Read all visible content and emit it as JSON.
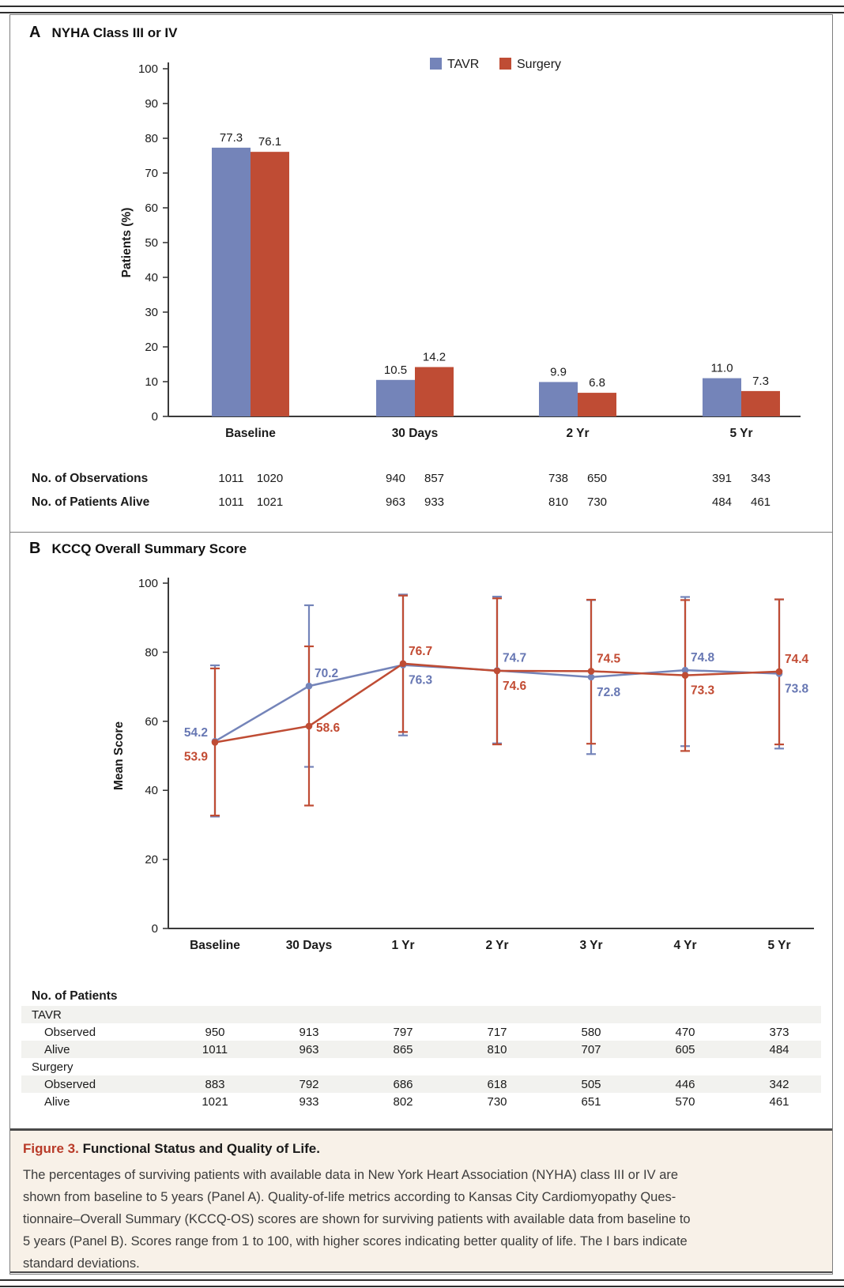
{
  "panel_a": {
    "label": "A",
    "title": "NYHA Class III or IV",
    "ylabel": "Patients (%)",
    "stats_rows": [
      {
        "label": "No. of Observations",
        "values": [
          [
            "1011",
            "1020"
          ],
          [
            "940",
            "857"
          ],
          [
            "738",
            "650"
          ],
          [
            "391",
            "343"
          ]
        ]
      },
      {
        "label": "No. of Patients Alive",
        "values": [
          [
            "1011",
            "1021"
          ],
          [
            "963",
            "933"
          ],
          [
            "810",
            "730"
          ],
          [
            "484",
            "461"
          ]
        ]
      }
    ]
  },
  "panel_b": {
    "label": "B",
    "title": "KCCQ Overall Summary Score",
    "ylabel": "Mean Score",
    "table": {
      "header": "No. of Patients",
      "rows": [
        {
          "label": "TAVR",
          "indent": 0,
          "striped": true,
          "values": []
        },
        {
          "label": "Observed",
          "indent": 1,
          "striped": false,
          "values": [
            "950",
            "913",
            "797",
            "717",
            "580",
            "470",
            "373"
          ]
        },
        {
          "label": "Alive",
          "indent": 1,
          "striped": true,
          "values": [
            "1011",
            "963",
            "865",
            "810",
            "707",
            "605",
            "484"
          ]
        },
        {
          "label": "Surgery",
          "indent": 0,
          "striped": false,
          "values": []
        },
        {
          "label": "Observed",
          "indent": 1,
          "striped": true,
          "values": [
            "883",
            "792",
            "686",
            "618",
            "505",
            "446",
            "342"
          ]
        },
        {
          "label": "Alive",
          "indent": 1,
          "striped": false,
          "values": [
            "1021",
            "933",
            "802",
            "730",
            "651",
            "570",
            "461"
          ]
        }
      ]
    }
  },
  "colors": {
    "tavr": "#7484b9",
    "surgery": "#bf4c34",
    "tavr_label": "#6777b3",
    "surgery_label": "#c24b33",
    "stripe": "#f2f2ef"
  },
  "chart_data": [
    {
      "type": "bar",
      "title": "NYHA Class III or IV",
      "categories": [
        "Baseline",
        "30 Days",
        "2 Yr",
        "5 Yr"
      ],
      "series": [
        {
          "name": "TAVR",
          "color": "#7484b9",
          "values": [
            77.3,
            10.5,
            9.9,
            11.0
          ]
        },
        {
          "name": "Surgery",
          "color": "#bf4c34",
          "values": [
            76.1,
            14.2,
            6.8,
            7.3
          ]
        }
      ],
      "xlabel": "",
      "ylabel": "Patients (%)",
      "ylim": [
        0,
        100
      ],
      "ytick": 10,
      "legend_position": "top-center",
      "grid": false
    },
    {
      "type": "line",
      "title": "KCCQ Overall Summary Score",
      "categories": [
        "Baseline",
        "30 Days",
        "1 Yr",
        "2 Yr",
        "3 Yr",
        "4 Yr",
        "5 Yr"
      ],
      "series": [
        {
          "name": "TAVR",
          "color": "#7484b9",
          "values": [
            54.2,
            70.2,
            76.3,
            74.7,
            72.8,
            74.8,
            73.8
          ],
          "err_lo": [
            32.4,
            46.8,
            55.9,
            53.6,
            50.5,
            52.8,
            52.1
          ],
          "err_hi": [
            76.2,
            93.6,
            96.7,
            96.1,
            95.1,
            96.0,
            95.3
          ],
          "label_side": [
            "left-above",
            "above",
            "below",
            "above",
            "below",
            "above",
            "below"
          ]
        },
        {
          "name": "Surgery",
          "color": "#bf4c34",
          "values": [
            53.9,
            58.6,
            76.7,
            74.6,
            74.5,
            73.3,
            74.4
          ],
          "err_lo": [
            32.7,
            35.6,
            56.9,
            53.3,
            53.5,
            51.4,
            53.3
          ],
          "err_hi": [
            75.3,
            81.7,
            96.4,
            95.6,
            95.2,
            95.1,
            95.3
          ],
          "label_side": [
            "left-below",
            "right",
            "above",
            "below",
            "above",
            "below",
            "above"
          ]
        }
      ],
      "xlabel": "",
      "ylabel": "Mean Score",
      "ylim": [
        0,
        100
      ],
      "ytick": 20,
      "error_bars": "standard deviations",
      "grid": false
    }
  ],
  "caption": {
    "figure_label": "Figure 3.",
    "title": "Functional Status and Quality of Life.",
    "body_lines": [
      "The percentages of surviving patients with available data in New York Heart Association (NYHA) class III or IV are",
      "shown from baseline to 5 years (Panel A). Quality-of-life metrics according to Kansas City Cardiomyopathy Ques-",
      "tionnaire–Overall Summary (KCCQ-OS) scores are shown for surviving patients with available data from baseline to",
      "5 years (Panel B). Scores range from 1 to 100, with higher scores indicating better quality of life. The I bars indicate",
      "standard deviations."
    ]
  }
}
